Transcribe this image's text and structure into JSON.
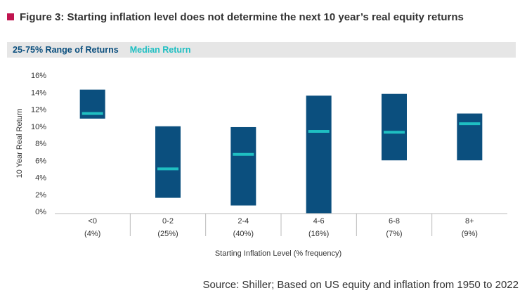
{
  "figure": {
    "title": "Figure 3: Starting inflation level does not determine the next 10 year’s real equity returns",
    "marker_color": "#c0144f"
  },
  "legend": {
    "range_label": "25-75% Range of Returns",
    "median_label": "Median Return",
    "range_color": "#0b4f7e",
    "median_color": "#1fbfc2"
  },
  "chart_data": {
    "type": "bar",
    "subtype": "floating-range-with-median",
    "xlabel": "Starting Inflation Level (% frequency)",
    "ylabel": "10 Year Real Return",
    "ylim": [
      0,
      16
    ],
    "yticks": [
      "0%",
      "2%",
      "4%",
      "6%",
      "8%",
      "10%",
      "12%",
      "14%",
      "16%"
    ],
    "categories": [
      "<0",
      "0-2",
      "2-4",
      "4-6",
      "6-8",
      "8+"
    ],
    "frequencies": [
      "(4%)",
      "(25%)",
      "(40%)",
      "(16%)",
      "(7%)",
      "(9%)"
    ],
    "series": [
      {
        "name": "25-75% Range of Returns",
        "low": [
          10.9,
          1.6,
          0.7,
          -0.2,
          6.0,
          6.0
        ],
        "high": [
          14.3,
          10.0,
          9.9,
          13.6,
          13.8,
          11.5
        ]
      },
      {
        "name": "Median Return",
        "values": [
          11.5,
          5.0,
          6.7,
          9.4,
          9.3,
          10.3
        ]
      }
    ],
    "grid": false
  },
  "source": "Source: Shiller; Based on US equity and inflation from 1950 to 2022"
}
